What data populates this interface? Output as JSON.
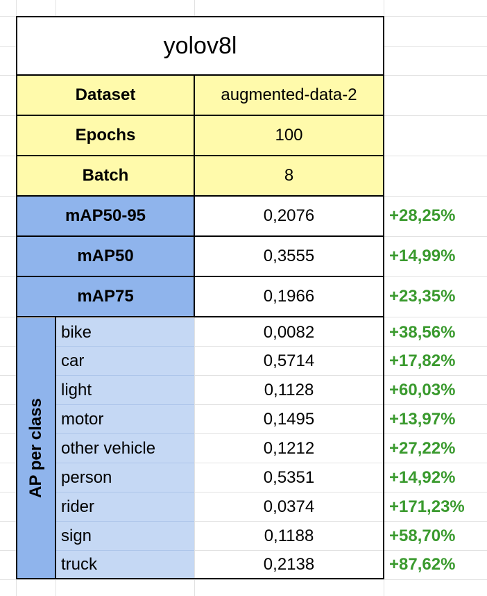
{
  "title": "yolov8l",
  "config": [
    {
      "label": "Dataset",
      "value": "augmented-data-2"
    },
    {
      "label": "Epochs",
      "value": "100"
    },
    {
      "label": "Batch",
      "value": "8"
    }
  ],
  "metrics": [
    {
      "label": "mAP50-95",
      "value": "0,2076",
      "change": "+28,25%"
    },
    {
      "label": "mAP50",
      "value": "0,3555",
      "change": "+14,99%"
    },
    {
      "label": "mAP75",
      "value": "0,1966",
      "change": "+23,35%"
    }
  ],
  "ap_per_class": {
    "label": "AP per class",
    "rows": [
      {
        "class": "bike",
        "value": "0,0082",
        "change": "+38,56%"
      },
      {
        "class": "car",
        "value": "0,5714",
        "change": "+17,82%"
      },
      {
        "class": "light",
        "value": "0,1128",
        "change": "+60,03%"
      },
      {
        "class": "motor",
        "value": "0,1495",
        "change": "+13,97%"
      },
      {
        "class": "other vehicle",
        "value": "0,1212",
        "change": "+27,22%"
      },
      {
        "class": "person",
        "value": "0,5351",
        "change": "+14,92%"
      },
      {
        "class": "rider",
        "value": "0,0374",
        "change": "+171,23%"
      },
      {
        "class": "sign",
        "value": "0,1188",
        "change": "+58,70%"
      },
      {
        "class": "truck",
        "value": "0,2138",
        "change": "+87,62%"
      }
    ]
  },
  "colors": {
    "header_yellow": "#fffaab",
    "metric_blue": "#8fb4ec",
    "class_light_blue": "#c5d8f4",
    "positive_green": "#3a9a2e"
  }
}
